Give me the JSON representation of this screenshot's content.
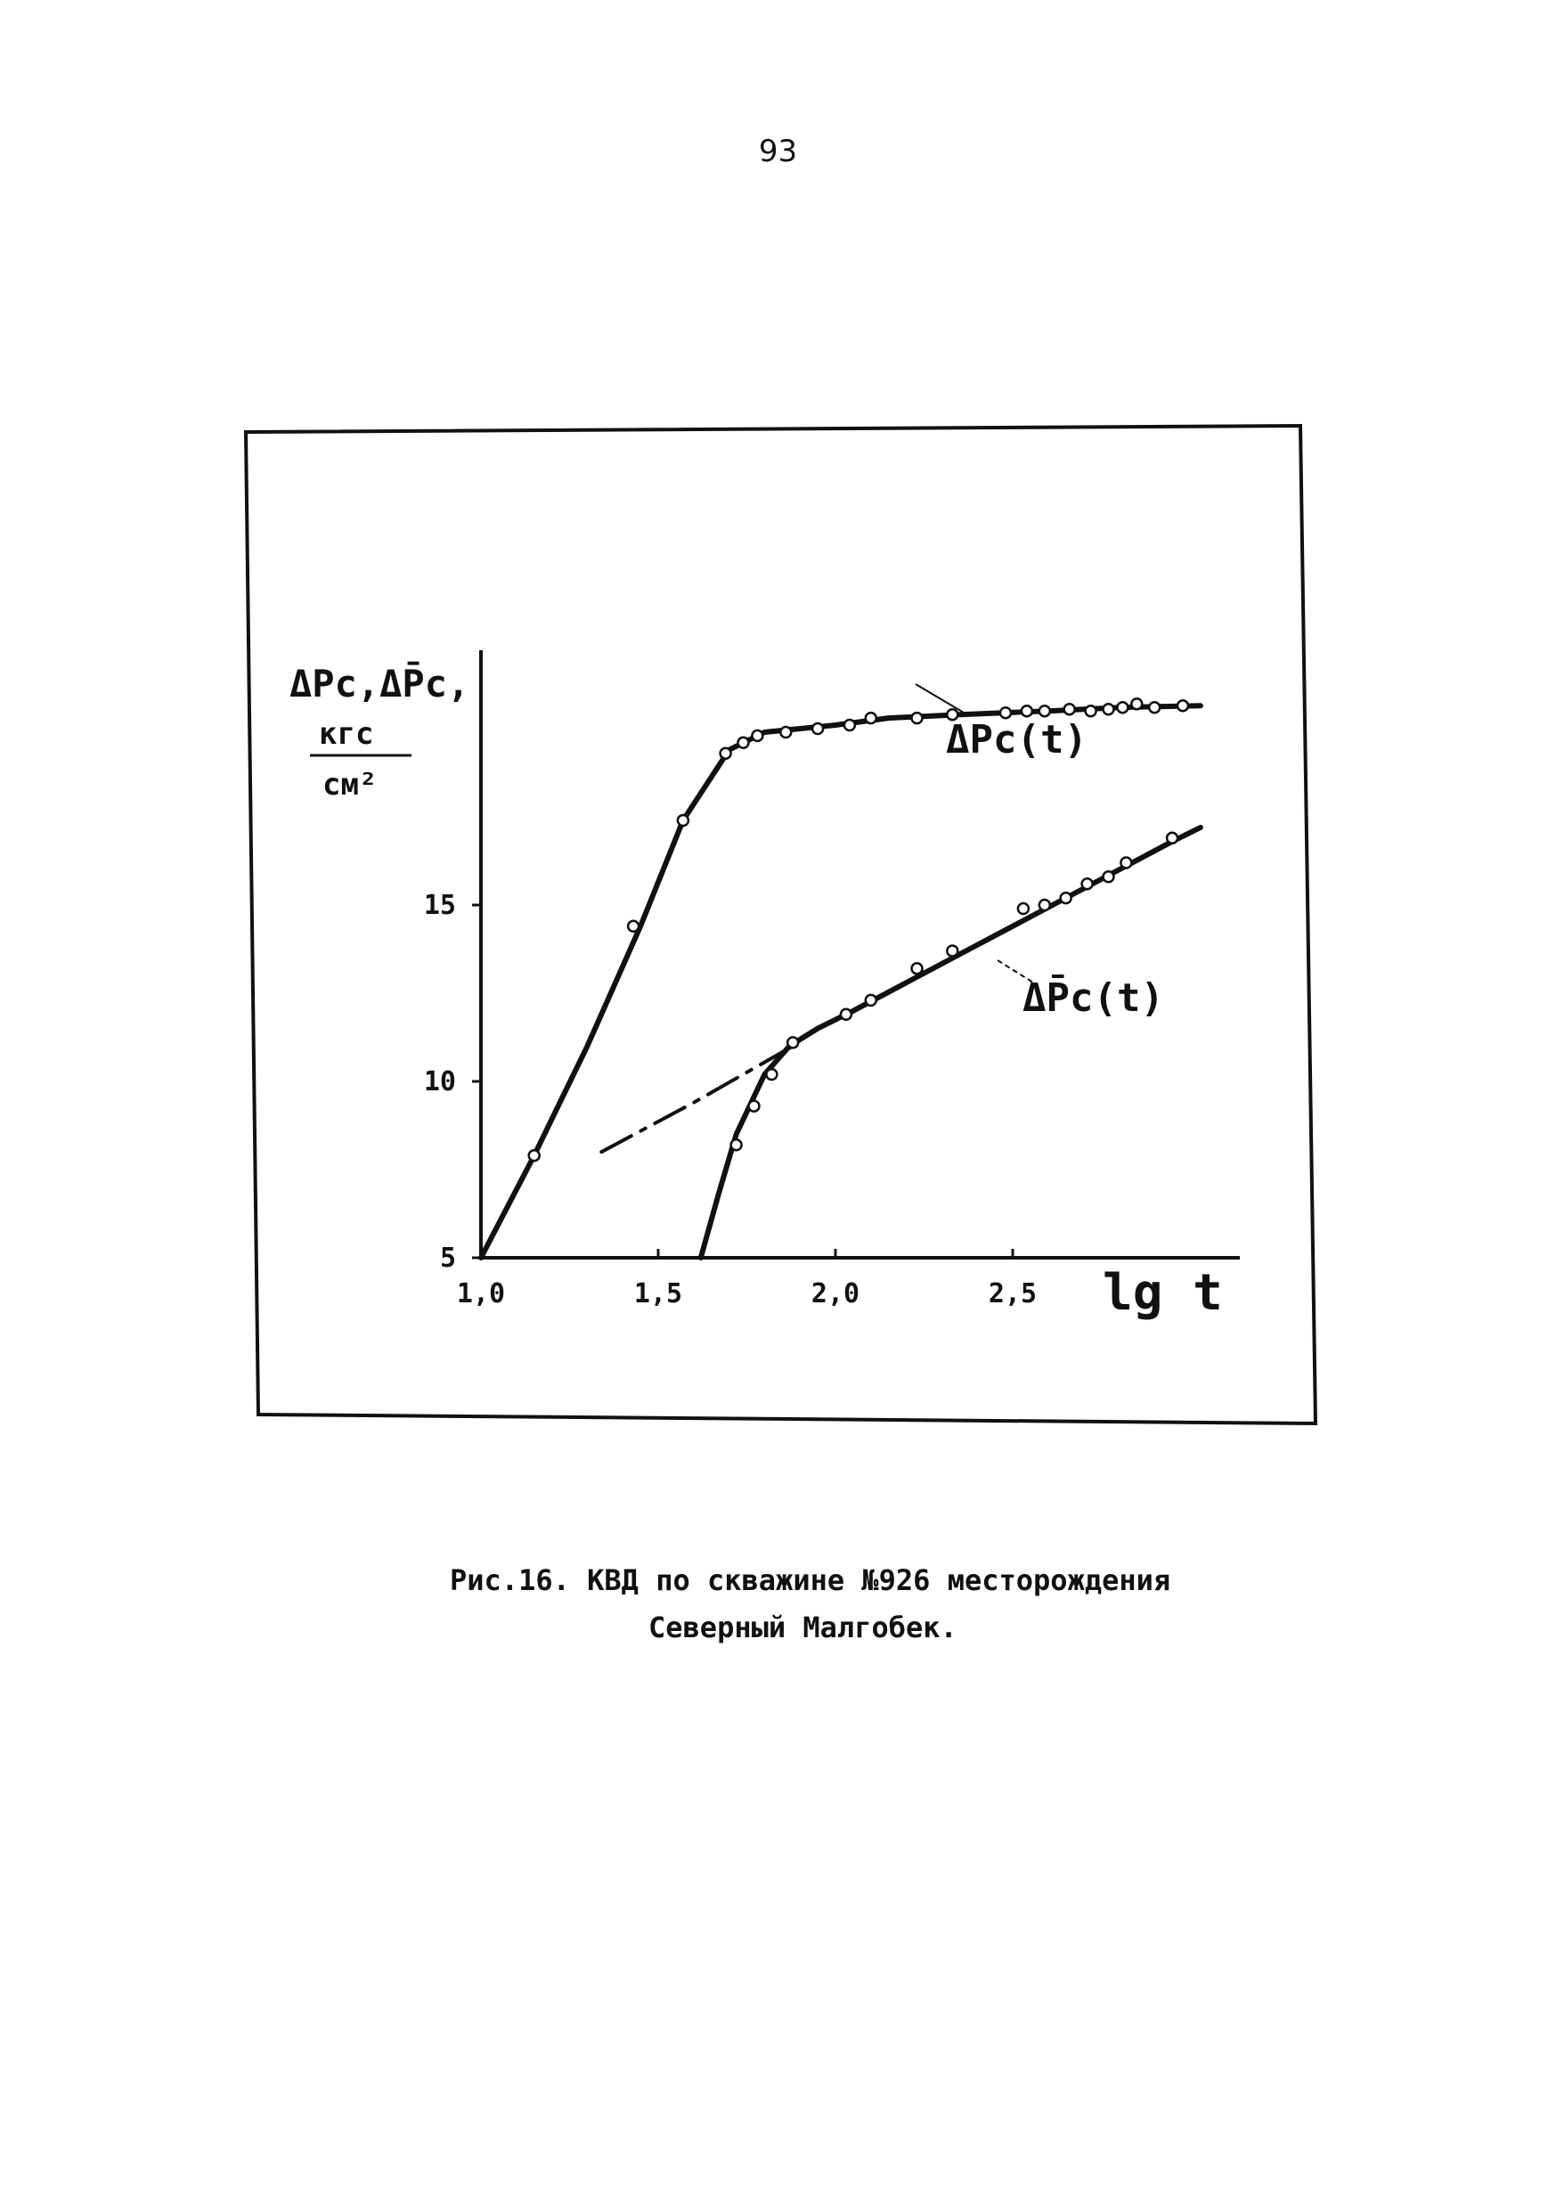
{
  "page": {
    "number": "93"
  },
  "caption": {
    "line1": "Рис.16. КВД по скважине №926 месторождения",
    "line2": "Северный Малгобек."
  },
  "chart_data": {
    "type": "line",
    "title": "",
    "xlabel": "lg t",
    "ylabel": {
      "line1": "ΔPс,ΔP̄с,",
      "units_num": "кгс",
      "units_den": "см²"
    },
    "xlim": [
      1.0,
      3.05
    ],
    "ylim": [
      5,
      20.8
    ],
    "x_ticks": [
      {
        "value": 1.0,
        "label": "1,0"
      },
      {
        "value": 1.5,
        "label": "1,5"
      },
      {
        "value": 2.0,
        "label": "2,0"
      },
      {
        "value": 2.5,
        "label": "2,5"
      }
    ],
    "y_ticks": [
      {
        "value": 5,
        "label": "5"
      },
      {
        "value": 10,
        "label": "10"
      },
      {
        "value": 15,
        "label": "15"
      }
    ],
    "grid": false,
    "legend": "none",
    "series": [
      {
        "name": "ΔPс(t)",
        "style": "solid",
        "curve": [
          [
            1.0,
            5.0
          ],
          [
            1.15,
            7.9
          ],
          [
            1.3,
            11.0
          ],
          [
            1.45,
            14.4
          ],
          [
            1.57,
            17.4
          ],
          [
            1.7,
            19.4
          ],
          [
            1.8,
            19.9
          ],
          [
            1.9,
            20.0
          ],
          [
            2.0,
            20.1
          ],
          [
            2.15,
            20.3
          ],
          [
            2.35,
            20.4
          ],
          [
            2.6,
            20.5
          ],
          [
            2.8,
            20.6
          ],
          [
            3.03,
            20.65
          ]
        ],
        "points": [
          [
            1.15,
            7.9
          ],
          [
            1.43,
            14.4
          ],
          [
            1.57,
            17.4
          ],
          [
            1.69,
            19.3
          ],
          [
            1.74,
            19.6
          ],
          [
            1.78,
            19.8
          ],
          [
            1.86,
            19.9
          ],
          [
            1.95,
            20.0
          ],
          [
            2.04,
            20.1
          ],
          [
            2.1,
            20.3
          ],
          [
            2.23,
            20.3
          ],
          [
            2.33,
            20.4
          ],
          [
            2.48,
            20.45
          ],
          [
            2.54,
            20.5
          ],
          [
            2.59,
            20.5
          ],
          [
            2.66,
            20.55
          ],
          [
            2.72,
            20.5
          ],
          [
            2.77,
            20.55
          ],
          [
            2.81,
            20.6
          ],
          [
            2.85,
            20.7
          ],
          [
            2.9,
            20.6
          ],
          [
            2.98,
            20.65
          ]
        ]
      },
      {
        "name": "ΔP̄с(t)",
        "style": "solid",
        "curve": [
          [
            1.62,
            5.0
          ],
          [
            1.67,
            6.8
          ],
          [
            1.72,
            8.5
          ],
          [
            1.8,
            10.2
          ],
          [
            1.87,
            11.0
          ],
          [
            1.95,
            11.5
          ],
          [
            2.05,
            12.0
          ],
          [
            2.2,
            12.8
          ],
          [
            2.35,
            13.6
          ],
          [
            2.5,
            14.4
          ],
          [
            2.65,
            15.2
          ],
          [
            2.8,
            16.0
          ],
          [
            2.95,
            16.8
          ],
          [
            3.03,
            17.2
          ]
        ],
        "points": [
          [
            1.72,
            8.2
          ],
          [
            1.77,
            9.3
          ],
          [
            1.82,
            10.2
          ],
          [
            1.88,
            11.1
          ],
          [
            2.03,
            11.9
          ],
          [
            2.1,
            12.3
          ],
          [
            2.23,
            13.2
          ],
          [
            2.33,
            13.7
          ],
          [
            2.53,
            14.9
          ],
          [
            2.59,
            15.0
          ],
          [
            2.65,
            15.2
          ],
          [
            2.71,
            15.6
          ],
          [
            2.77,
            15.8
          ],
          [
            2.82,
            16.2
          ],
          [
            2.95,
            16.9
          ]
        ]
      },
      {
        "name": "",
        "style": "dashed",
        "curve": [
          [
            1.34,
            8.0
          ],
          [
            1.6,
            9.4
          ],
          [
            1.88,
            11.0
          ]
        ]
      }
    ],
    "annotations": [
      {
        "target": "ΔPс(t)",
        "text": "ΔPс(t)"
      },
      {
        "target": "ΔP̄с(t)",
        "text": "ΔP̄с(t)"
      }
    ]
  }
}
